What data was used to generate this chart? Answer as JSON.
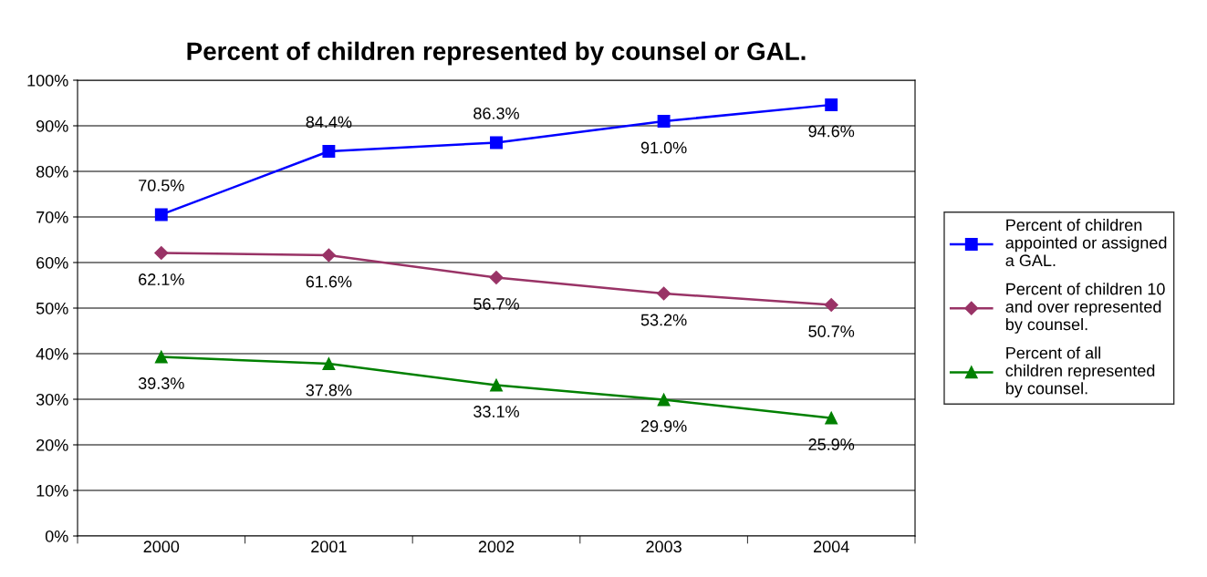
{
  "chart_data": {
    "type": "line",
    "title": "Percent of children represented by counsel or GAL.",
    "categories": [
      "2000",
      "2001",
      "2002",
      "2003",
      "2004"
    ],
    "series": [
      {
        "name": "Percent of children appointed or assigned a GAL.",
        "color": "#0000ff",
        "marker": "square",
        "values": [
          70.5,
          84.4,
          86.3,
          91.0,
          94.6
        ],
        "value_labels": [
          "70.5%",
          "84.4%",
          "86.3%",
          "91.0%",
          "94.6%"
        ]
      },
      {
        "name": "Percent of children 10 and over represented by counsel.",
        "color": "#993366",
        "marker": "diamond",
        "values": [
          62.1,
          61.6,
          56.7,
          53.2,
          50.7
        ],
        "value_labels": [
          "62.1%",
          "61.6%",
          "56.7%",
          "53.2%",
          "50.7%"
        ]
      },
      {
        "name": "Percent of all children represented by counsel.",
        "color": "#008000",
        "marker": "triangle",
        "values": [
          39.3,
          37.8,
          33.1,
          29.9,
          25.9
        ],
        "value_labels": [
          "39.3%",
          "37.8%",
          "33.1%",
          "29.9%",
          "25.9%"
        ]
      }
    ],
    "ylim": [
      0,
      100
    ],
    "yticks": [
      {
        "value": 0,
        "label": "0%"
      },
      {
        "value": 10,
        "label": "10%"
      },
      {
        "value": 20,
        "label": "20%"
      },
      {
        "value": 30,
        "label": "30%"
      },
      {
        "value": 40,
        "label": "40%"
      },
      {
        "value": 50,
        "label": "50%"
      },
      {
        "value": 60,
        "label": "60%"
      },
      {
        "value": 70,
        "label": "70%"
      },
      {
        "value": 80,
        "label": "80%"
      },
      {
        "value": 90,
        "label": "90%"
      },
      {
        "value": 100,
        "label": "100%"
      }
    ],
    "grid": "y",
    "legend": "right",
    "line_style": "solid"
  }
}
